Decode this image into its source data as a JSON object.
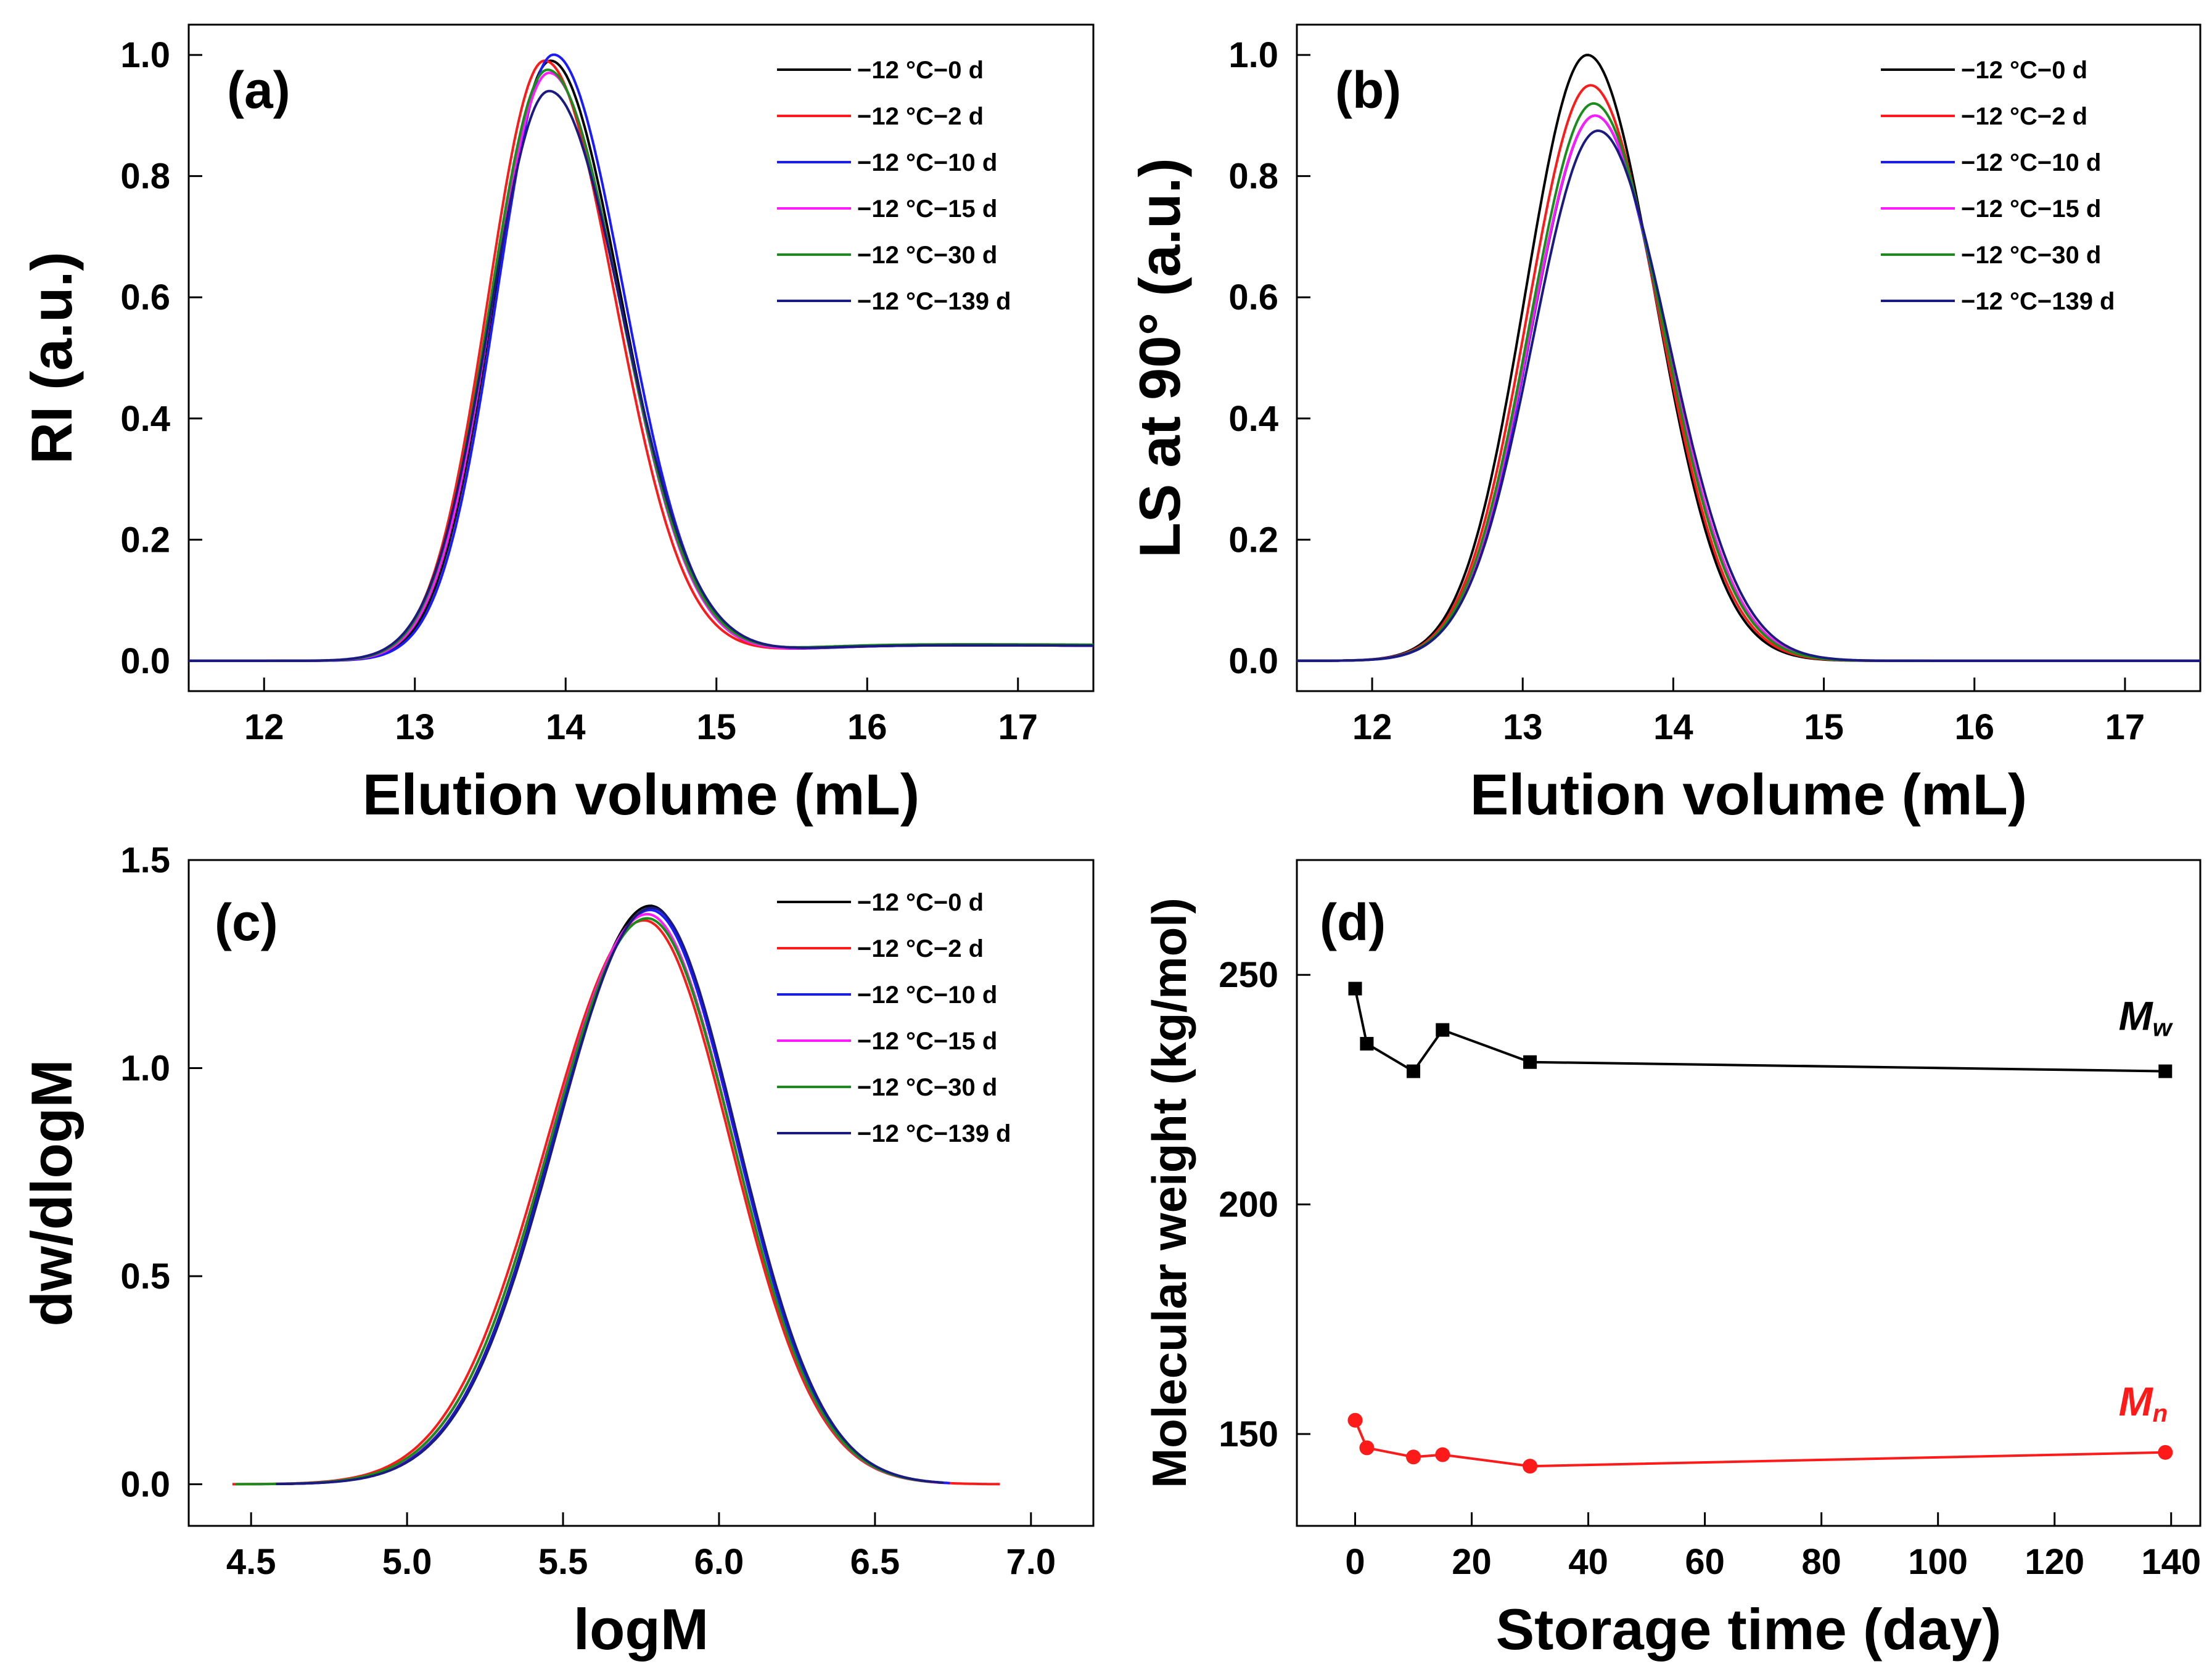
{
  "figure": {
    "background": "#ffffff",
    "legend_entries": [
      "−12 °C−0 d",
      "−12 °C−2 d",
      "−12 °C−10 d",
      "−12 °C−15 d",
      "−12 °C−30 d",
      "−12 °C−139 d"
    ],
    "legend_colors": [
      "#000000",
      "#ff1a1a",
      "#1a1aff",
      "#ff1aff",
      "#1a8c1a",
      "#1a1a80"
    ]
  },
  "chart_data": [
    {
      "panel": "(a)",
      "type": "line",
      "xlabel": "Elution volume (mL)",
      "ylabel": "RI (a.u.)",
      "xlim": [
        11.5,
        17.5
      ],
      "ylim": [
        -0.05,
        1.05
      ],
      "xticks": [
        12,
        13,
        14,
        15,
        16,
        17
      ],
      "yticks": [
        0.0,
        0.2,
        0.4,
        0.6,
        0.8,
        1.0
      ],
      "ytick_decimals": 1,
      "legend": "top-right",
      "series": [
        {
          "name": "−12 °C−0 d",
          "peak": 0.99,
          "center": 13.9,
          "sigma": 0.42,
          "skew": 0.11,
          "tail": 0.03,
          "color": "#000000"
        },
        {
          "name": "−12 °C−2 d",
          "peak": 0.99,
          "center": 13.86,
          "sigma": 0.42,
          "skew": 0.11,
          "tail": 0.03,
          "color": "#ff1a1a"
        },
        {
          "name": "−12 °C−10 d",
          "peak": 1.0,
          "center": 13.92,
          "sigma": 0.42,
          "skew": 0.11,
          "tail": 0.03,
          "color": "#1a1aff"
        },
        {
          "name": "−12 °C−15 d",
          "peak": 0.97,
          "center": 13.89,
          "sigma": 0.425,
          "skew": 0.11,
          "tail": 0.03,
          "color": "#ff1aff"
        },
        {
          "name": "−12 °C−30 d",
          "peak": 0.975,
          "center": 13.88,
          "sigma": 0.43,
          "skew": 0.115,
          "tail": 0.032,
          "color": "#1a8c1a"
        },
        {
          "name": "−12 °C−139 d",
          "peak": 0.94,
          "center": 13.89,
          "sigma": 0.44,
          "skew": 0.11,
          "tail": 0.03,
          "color": "#1a1a80"
        }
      ]
    },
    {
      "panel": "(b)",
      "type": "line",
      "xlabel": "Elution volume (mL)",
      "ylabel": "LS at 90° (a.u.)",
      "xlim": [
        11.5,
        17.5
      ],
      "ylim": [
        -0.05,
        1.05
      ],
      "xticks": [
        12,
        13,
        14,
        15,
        16,
        17
      ],
      "yticks": [
        0.0,
        0.2,
        0.4,
        0.6,
        0.8,
        1.0
      ],
      "ytick_decimals": 1,
      "legend": "top-right",
      "series": [
        {
          "name": "−12 °C−0 d",
          "peak": 1.0,
          "center": 13.43,
          "sigma": 0.43,
          "skew": 0.04,
          "tail": 0.0,
          "color": "#000000"
        },
        {
          "name": "−12 °C−2 d",
          "peak": 0.95,
          "center": 13.45,
          "sigma": 0.435,
          "skew": 0.04,
          "tail": 0.0,
          "color": "#ff1a1a"
        },
        {
          "name": "−12 °C−10 d",
          "peak": 0.9,
          "center": 13.48,
          "sigma": 0.44,
          "skew": 0.04,
          "tail": 0.0,
          "color": "#1a1aff"
        },
        {
          "name": "−12 °C−15 d",
          "peak": 0.9,
          "center": 13.48,
          "sigma": 0.445,
          "skew": 0.04,
          "tail": 0.0,
          "color": "#ff1aff"
        },
        {
          "name": "−12 °C−30 d",
          "peak": 0.92,
          "center": 13.47,
          "sigma": 0.44,
          "skew": 0.04,
          "tail": 0.0,
          "color": "#1a8c1a"
        },
        {
          "name": "−12 °C−139 d",
          "peak": 0.875,
          "center": 13.5,
          "sigma": 0.45,
          "skew": 0.04,
          "tail": 0.0,
          "color": "#1a1a80"
        }
      ]
    },
    {
      "panel": "(c)",
      "type": "line",
      "xlabel": "logM",
      "ylabel": "dw/dlogM",
      "xlim": [
        4.3,
        7.2
      ],
      "ylim": [
        -0.1,
        1.5
      ],
      "xticks": [
        4.5,
        5.0,
        5.5,
        6.0,
        6.5,
        7.0
      ],
      "yticks": [
        0.0,
        0.5,
        1.0,
        1.5
      ],
      "ytick_decimals": 1,
      "legend": "top-right",
      "series": [
        {
          "name": "−12 °C−0 d",
          "peak": 1.39,
          "center": 5.78,
          "sigma": 0.29,
          "skew": -0.06,
          "tail": 0.0,
          "xmin": 4.58,
          "xmax": 6.72,
          "color": "#000000"
        },
        {
          "name": "−12 °C−2 d",
          "peak": 1.355,
          "center": 5.76,
          "sigma": 0.295,
          "skew": -0.06,
          "tail": 0.0,
          "xmin": 4.44,
          "xmax": 6.9,
          "color": "#ff1a1a"
        },
        {
          "name": "−12 °C−10 d",
          "peak": 1.38,
          "center": 5.78,
          "sigma": 0.29,
          "skew": -0.06,
          "tail": 0.0,
          "xmin": 4.58,
          "xmax": 6.74,
          "color": "#1a1aff"
        },
        {
          "name": "−12 °C−15 d",
          "peak": 1.37,
          "center": 5.77,
          "sigma": 0.292,
          "skew": -0.06,
          "tail": 0.0,
          "xmin": 4.5,
          "xmax": 6.7,
          "color": "#ff1aff"
        },
        {
          "name": "−12 °C−30 d",
          "peak": 1.36,
          "center": 5.77,
          "sigma": 0.293,
          "skew": -0.06,
          "tail": 0.0,
          "xmin": 4.45,
          "xmax": 6.68,
          "color": "#1a8c1a"
        },
        {
          "name": "−12 °C−139 d",
          "peak": 1.385,
          "center": 5.785,
          "sigma": 0.29,
          "skew": -0.06,
          "tail": 0.0,
          "xmin": 4.58,
          "xmax": 6.72,
          "color": "#1a1a80"
        }
      ]
    },
    {
      "panel": "(d)",
      "type": "line",
      "xlabel": "Storage time (day)",
      "ylabel": "Molecular  weight (kg/mol)",
      "xlim": [
        -10,
        145
      ],
      "ylim": [
        130,
        275
      ],
      "xticks": [
        0,
        20,
        40,
        60,
        80,
        100,
        120,
        140
      ],
      "yticks": [
        150,
        200,
        250
      ],
      "ytick_decimals": 0,
      "series": [
        {
          "name": "Mw",
          "label": "M",
          "sub": "w",
          "marker": "square",
          "color": "#000000",
          "x": [
            0,
            2,
            10,
            15,
            30,
            139
          ],
          "y": [
            247,
            235,
            229,
            238,
            231,
            229
          ]
        },
        {
          "name": "Mn",
          "label": "M",
          "sub": "n",
          "marker": "circle",
          "color": "#ff1a1a",
          "x": [
            0,
            2,
            10,
            15,
            30,
            139
          ],
          "y": [
            153,
            147,
            145,
            145.5,
            143,
            146
          ]
        }
      ]
    }
  ]
}
